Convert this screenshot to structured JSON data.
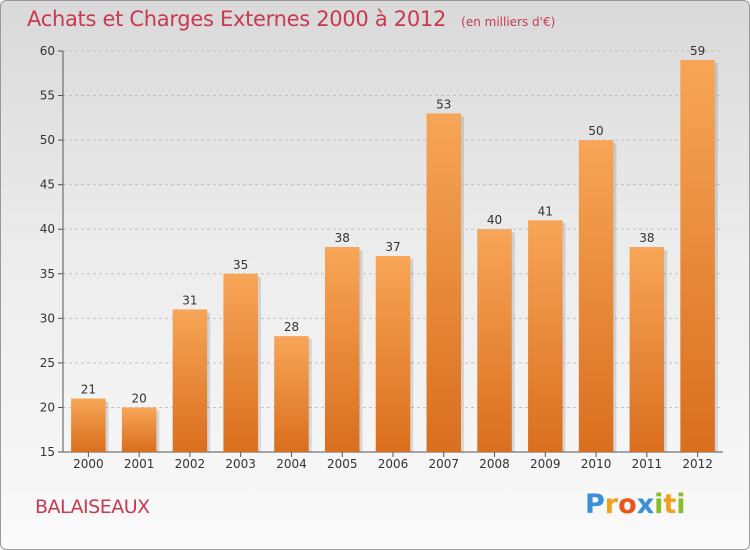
{
  "header": {
    "title": "Achats et Charges Externes 2000 à 2012",
    "unit": "(en milliers d'€)"
  },
  "footer": {
    "commune": "BALAISEAUX",
    "logo_letters": [
      {
        "ch": "P",
        "color": "#3a8fd6"
      },
      {
        "ch": "r",
        "color": "#f0a020"
      },
      {
        "ch": "o",
        "color": "#e8541a"
      },
      {
        "ch": "x",
        "color": "#3a8fd6"
      },
      {
        "ch": "i",
        "color": "#8bbd2a"
      },
      {
        "ch": "t",
        "color": "#f0a020"
      },
      {
        "ch": "i",
        "color": "#8bbd2a"
      }
    ]
  },
  "chart_data": {
    "type": "bar",
    "title": "Achats et Charges Externes 2000 à 2012",
    "subtitle": "(en milliers d'€)",
    "categories": [
      "2000",
      "2001",
      "2002",
      "2003",
      "2004",
      "2005",
      "2006",
      "2007",
      "2008",
      "2009",
      "2010",
      "2011",
      "2012"
    ],
    "values": [
      21,
      20,
      31,
      35,
      28,
      38,
      37,
      53,
      40,
      41,
      50,
      38,
      59
    ],
    "ylim": [
      15,
      60
    ],
    "yticks": [
      15,
      20,
      25,
      30,
      35,
      40,
      45,
      50,
      55,
      60
    ],
    "grid": "horizontal dashed",
    "bar_color_top": "#f7a558",
    "bar_color_bottom": "#d96f1e"
  }
}
